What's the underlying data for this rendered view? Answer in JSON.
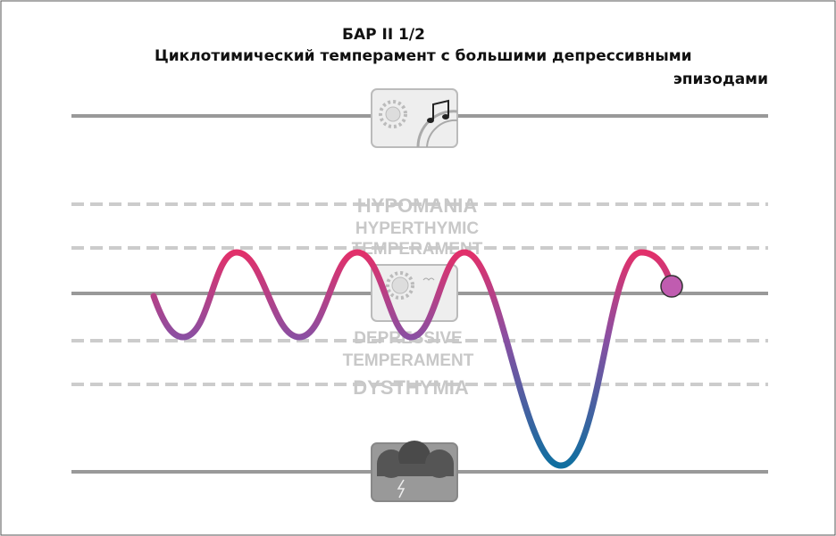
{
  "header": {
    "title": "БАР II 1/2",
    "subtitle_line1": "Циклотимический темперамент с большими депрессивными",
    "subtitle_line2": "эпизодами"
  },
  "labels": {
    "hypomania": "HYPOMANIA",
    "hyperthymic_1": "HYPERTHYMIC",
    "hyperthymic_2": "TEMPERAMENT",
    "depressive_1": "DEPRESSIVE",
    "depressive_2": "TEMPERAMENT",
    "dysthymia": "DYSTHYMIA"
  }
}
